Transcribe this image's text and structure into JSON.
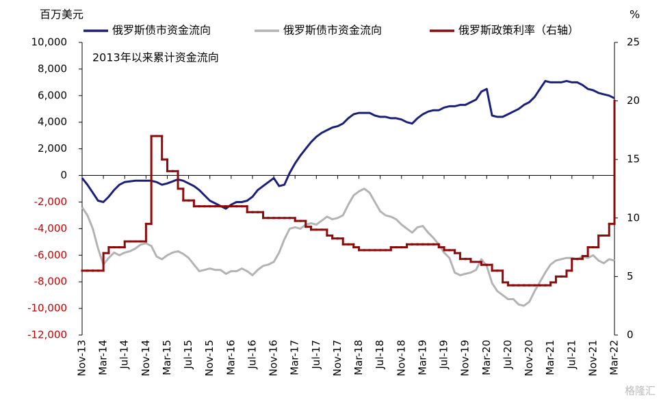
{
  "chart_data": {
    "type": "line",
    "y_axis_label": "百万美元",
    "y2_axis_label": "%",
    "annotation": "2013年以来累计资金流向",
    "watermark": "格隆汇",
    "categories": [
      "Nov-13",
      null,
      null,
      null,
      "Mar-14",
      null,
      null,
      null,
      "Jul-14",
      null,
      null,
      null,
      "Nov-14",
      null,
      null,
      null,
      "Mar-15",
      null,
      null,
      null,
      "Jul-15",
      null,
      null,
      null,
      "Nov-15",
      null,
      null,
      null,
      "Mar-16",
      null,
      null,
      null,
      "Jul-16",
      null,
      null,
      null,
      "Nov-16",
      null,
      null,
      null,
      "Mar-17",
      null,
      null,
      null,
      "Jul-17",
      null,
      null,
      null,
      "Nov-17",
      null,
      null,
      null,
      "Mar-18",
      null,
      null,
      null,
      "Jul-18",
      null,
      null,
      null,
      "Nov-18",
      null,
      null,
      null,
      "Mar-19",
      null,
      null,
      null,
      "Jul-19",
      null,
      null,
      null,
      "Nov-19",
      null,
      null,
      null,
      "Mar-20",
      null,
      null,
      null,
      "Jul-20",
      null,
      null,
      null,
      "Nov-20",
      null,
      null,
      null,
      "Mar-21",
      null,
      null,
      null,
      "Jul-21",
      null,
      null,
      null,
      "Nov-21",
      null,
      null,
      null,
      "Mar-22"
    ],
    "series": [
      {
        "name": "俄罗斯债市资金流向",
        "color": "#1a1f7a",
        "style": "line",
        "values": [
          -200,
          -700,
          -1300,
          -1900,
          -2000,
          -1600,
          -1100,
          -700,
          -500,
          -450,
          -400,
          -400,
          -400,
          -400,
          -500,
          -700,
          -600,
          -450,
          -300,
          -400,
          -600,
          -800,
          -1100,
          -1500,
          -1900,
          -2100,
          -2300,
          -2500,
          -2200,
          -2000,
          -2000,
          -1900,
          -1600,
          -1100,
          -800,
          -500,
          -200,
          -800,
          -700,
          200,
          900,
          1500,
          2000,
          2500,
          2900,
          3200,
          3400,
          3600,
          3700,
          3900,
          4300,
          4600,
          4700,
          4700,
          4700,
          4500,
          4400,
          4400,
          4300,
          4300,
          4200,
          4000,
          3900,
          4300,
          4600,
          4800,
          4900,
          4900,
          5100,
          5200,
          5200,
          5300,
          5300,
          5500,
          5700,
          6300,
          6500,
          4500,
          4400,
          4400,
          4600,
          4800,
          5000,
          5300,
          5500,
          5900,
          6500,
          7100,
          7000,
          7000,
          7000,
          7100,
          7000,
          7000,
          6800,
          6500,
          6400,
          6200,
          6100,
          6000,
          5800
        ]
      },
      {
        "name": "俄罗斯债市资金流向",
        "color": "#b3b3b3",
        "style": "line",
        "values": [
          -2400,
          -3000,
          -4000,
          -5500,
          -6700,
          -6200,
          -5800,
          -6000,
          -5800,
          -5700,
          -5500,
          -5200,
          -5100,
          -5300,
          -6100,
          -6300,
          -6000,
          -5800,
          -5700,
          -5900,
          -6200,
          -6700,
          -7200,
          -7100,
          -7000,
          -7100,
          -7100,
          -7400,
          -7200,
          -7200,
          -7000,
          -7200,
          -7500,
          -7100,
          -6800,
          -6700,
          -6500,
          -5800,
          -4800,
          -4000,
          -3900,
          -4000,
          -3700,
          -3600,
          -3700,
          -3400,
          -3100,
          -3300,
          -3200,
          -3000,
          -2200,
          -1500,
          -1200,
          -1000,
          -1300,
          -2000,
          -2700,
          -3000,
          -3100,
          -3300,
          -3700,
          -4000,
          -4300,
          -3900,
          -3800,
          -4300,
          -4700,
          -5200,
          -5800,
          -6200,
          -7300,
          -7500,
          -7400,
          -7300,
          -7100,
          -6300,
          -6800,
          -8100,
          -8700,
          -9000,
          -9300,
          -9300,
          -9700,
          -9800,
          -9500,
          -8700,
          -8000,
          -7300,
          -6700,
          -6400,
          -6300,
          -6200,
          -6200,
          -6300,
          -6100,
          -6200,
          -6000,
          -6400,
          -6600,
          -6300,
          -6400
        ]
      },
      {
        "name": "俄罗斯政策利率（右轴）",
        "color": "#8b0a0a",
        "style": "step",
        "axis": "y2",
        "values": [
          5.5,
          5.5,
          5.5,
          5.5,
          7,
          7.5,
          7.5,
          7.5,
          8,
          8,
          8,
          8,
          9.5,
          17,
          17,
          15,
          14,
          14,
          12.5,
          11.5,
          11.5,
          11,
          11,
          11,
          11,
          11,
          11,
          11,
          11,
          11,
          11,
          10.5,
          10.5,
          10.5,
          10,
          10,
          10,
          10,
          10,
          10,
          9.75,
          9.75,
          9.25,
          9,
          9,
          9,
          8.5,
          8.25,
          8.25,
          7.75,
          7.75,
          7.5,
          7.25,
          7.25,
          7.25,
          7.25,
          7.25,
          7.25,
          7.5,
          7.5,
          7.5,
          7.75,
          7.75,
          7.75,
          7.75,
          7.75,
          7.75,
          7.5,
          7.25,
          7.25,
          7,
          6.5,
          6.5,
          6.25,
          6.25,
          6,
          6,
          5.5,
          5.5,
          4.5,
          4.25,
          4.25,
          4.25,
          4.25,
          4.25,
          4.25,
          4.25,
          4.25,
          4.5,
          5,
          5,
          5.5,
          6.5,
          6.5,
          6.75,
          7.5,
          7.5,
          8.5,
          8.5,
          9.5,
          20
        ]
      }
    ],
    "ylim": [
      -12000,
      10000
    ],
    "yticks": [
      {
        "value": -12000,
        "label": "-12,000"
      },
      {
        "value": -10000,
        "label": "-10,000"
      },
      {
        "value": -8000,
        "label": "-8,000"
      },
      {
        "value": -6000,
        "label": "-6,000"
      },
      {
        "value": -4000,
        "label": "-4,000"
      },
      {
        "value": -2000,
        "label": "-2,000"
      },
      0,
      {
        "value": 2000,
        "label": "2,000"
      },
      {
        "value": 4000,
        "label": "4,000"
      },
      {
        "value": 6000,
        "label": "6,000"
      },
      {
        "value": 8000,
        "label": "8,000"
      },
      {
        "value": 10000,
        "label": "10,000"
      }
    ],
    "y2lim": [
      0,
      25
    ],
    "y2ticks": [
      0,
      5,
      10,
      15,
      20,
      25
    ],
    "grid": false,
    "legend": "top"
  }
}
